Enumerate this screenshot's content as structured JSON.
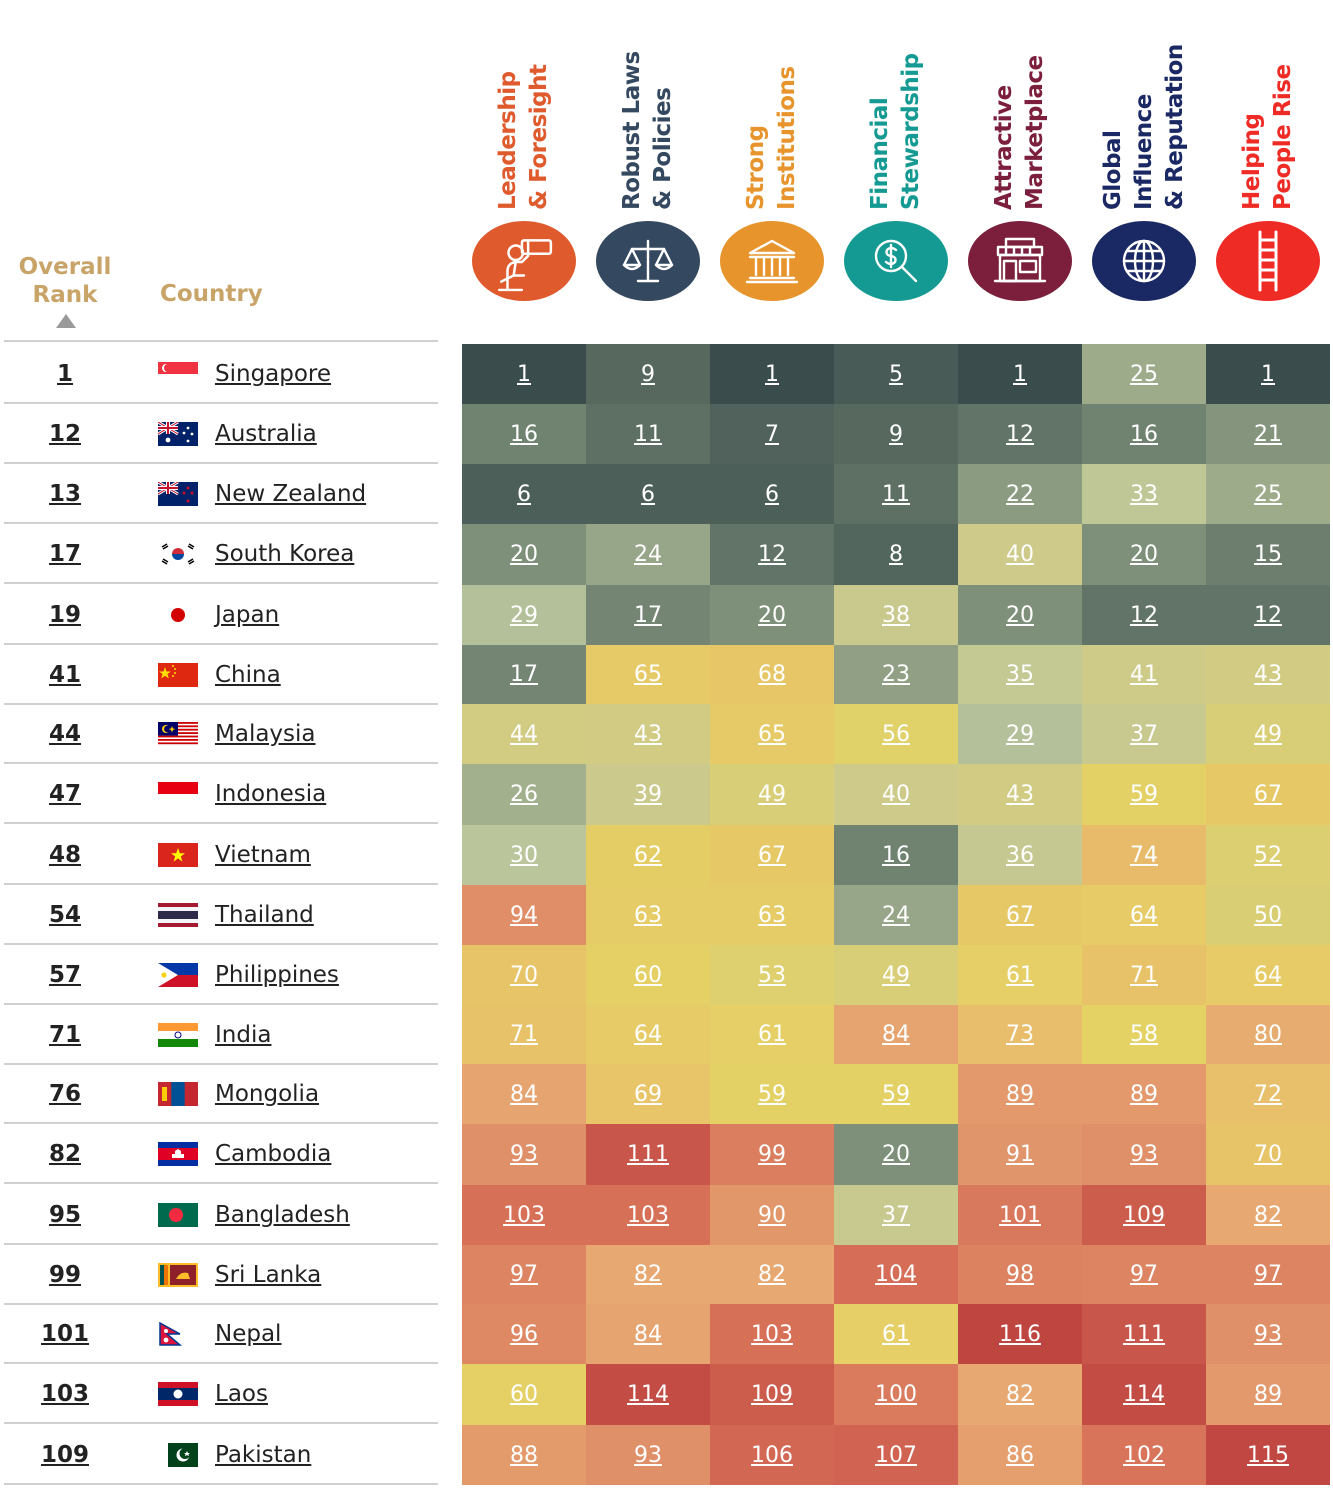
{
  "header": {
    "overall_rank": "Overall\nRank",
    "country": "Country"
  },
  "pillars": [
    {
      "line1": "Leadership",
      "line2": "& Foresight",
      "color": "#df5b2e",
      "icon": "telescope-icon"
    },
    {
      "line1": "Robust Laws",
      "line2": "& Policies",
      "color": "#34495f",
      "icon": "scales-icon"
    },
    {
      "line1": "Strong",
      "line2": "Institutions",
      "color": "#e7942c",
      "icon": "building-icon"
    },
    {
      "line1": "Financial",
      "line2": "Stewardship",
      "color": "#149a92",
      "icon": "money-search-icon"
    },
    {
      "line1": "Attractive",
      "line2": "Marketplace",
      "color": "#7b1f3c",
      "icon": "storefront-icon"
    },
    {
      "line1": "Global Influence",
      "line2": "& Reputation",
      "color": "#1a2863",
      "icon": "globe-icon"
    },
    {
      "line1": "Helping",
      "line2": "People Rise",
      "color": "#ee2b24",
      "icon": "ladder-icon"
    }
  ],
  "rows": [
    {
      "rank": "1",
      "country": "Singapore",
      "flag": "singapore-flag"
    },
    {
      "rank": "12",
      "country": "Australia",
      "flag": "australia-flag"
    },
    {
      "rank": "13",
      "country": "New Zealand",
      "flag": "new-zealand-flag"
    },
    {
      "rank": "17",
      "country": "South Korea",
      "flag": "south-korea-flag"
    },
    {
      "rank": "19",
      "country": "Japan",
      "flag": "japan-flag"
    },
    {
      "rank": "41",
      "country": "China",
      "flag": "china-flag"
    },
    {
      "rank": "44",
      "country": "Malaysia",
      "flag": "malaysia-flag"
    },
    {
      "rank": "47",
      "country": "Indonesia",
      "flag": "indonesia-flag"
    },
    {
      "rank": "48",
      "country": "Vietnam",
      "flag": "vietnam-flag"
    },
    {
      "rank": "54",
      "country": "Thailand",
      "flag": "thailand-flag"
    },
    {
      "rank": "57",
      "country": "Philippines",
      "flag": "philippines-flag"
    },
    {
      "rank": "71",
      "country": "India",
      "flag": "india-flag"
    },
    {
      "rank": "76",
      "country": "Mongolia",
      "flag": "mongolia-flag"
    },
    {
      "rank": "82",
      "country": "Cambodia",
      "flag": "cambodia-flag"
    },
    {
      "rank": "95",
      "country": "Bangladesh",
      "flag": "bangladesh-flag"
    },
    {
      "rank": "99",
      "country": "Sri Lanka",
      "flag": "sri-lanka-flag"
    },
    {
      "rank": "101",
      "country": "Nepal",
      "flag": "nepal-flag"
    },
    {
      "rank": "103",
      "country": "Laos",
      "flag": "laos-flag"
    },
    {
      "rank": "109",
      "country": "Pakistan",
      "flag": "pakistan-flag"
    }
  ],
  "chart_data": {
    "type": "heatmap",
    "title": "",
    "columns": [
      "Leadership & Foresight",
      "Robust Laws & Policies",
      "Strong Institutions",
      "Financial Stewardship",
      "Attractive Marketplace",
      "Global Influence & Reputation",
      "Helping People Rise"
    ],
    "rows": [
      "Singapore",
      "Australia",
      "New Zealand",
      "South Korea",
      "Japan",
      "China",
      "Malaysia",
      "Indonesia",
      "Vietnam",
      "Thailand",
      "Philippines",
      "India",
      "Mongolia",
      "Cambodia",
      "Bangladesh",
      "Sri Lanka",
      "Nepal",
      "Laos",
      "Pakistan"
    ],
    "values": [
      [
        1,
        9,
        1,
        5,
        1,
        25,
        1
      ],
      [
        16,
        11,
        7,
        9,
        12,
        16,
        21
      ],
      [
        6,
        6,
        6,
        11,
        22,
        33,
        25
      ],
      [
        20,
        24,
        12,
        8,
        40,
        20,
        15
      ],
      [
        29,
        17,
        20,
        38,
        20,
        12,
        12
      ],
      [
        17,
        65,
        68,
        23,
        35,
        41,
        43
      ],
      [
        44,
        43,
        65,
        56,
        29,
        37,
        49
      ],
      [
        26,
        39,
        49,
        40,
        43,
        59,
        67
      ],
      [
        30,
        62,
        67,
        16,
        36,
        74,
        52
      ],
      [
        94,
        63,
        63,
        24,
        67,
        64,
        50
      ],
      [
        70,
        60,
        53,
        49,
        61,
        71,
        64
      ],
      [
        71,
        64,
        61,
        84,
        73,
        58,
        80
      ],
      [
        84,
        69,
        59,
        59,
        89,
        89,
        72
      ],
      [
        93,
        111,
        99,
        20,
        91,
        93,
        70
      ],
      [
        103,
        103,
        90,
        37,
        101,
        109,
        82
      ],
      [
        97,
        82,
        82,
        104,
        98,
        97,
        97
      ],
      [
        96,
        84,
        103,
        61,
        116,
        111,
        93
      ],
      [
        60,
        114,
        109,
        100,
        82,
        114,
        89
      ],
      [
        88,
        93,
        106,
        107,
        86,
        102,
        115
      ]
    ],
    "color_scale": {
      "stops": [
        {
          "value": 1,
          "color": "#3a4d4c"
        },
        {
          "value": 20,
          "color": "#7f907a"
        },
        {
          "value": 30,
          "color": "#bac59c"
        },
        {
          "value": 40,
          "color": "#cdca8a"
        },
        {
          "value": 58,
          "color": "#e4d265"
        },
        {
          "value": 70,
          "color": "#e8c468"
        },
        {
          "value": 82,
          "color": "#e7a872"
        },
        {
          "value": 95,
          "color": "#df8c66"
        },
        {
          "value": 105,
          "color": "#d46a55"
        },
        {
          "value": 116,
          "color": "#bf4540"
        }
      ]
    }
  }
}
